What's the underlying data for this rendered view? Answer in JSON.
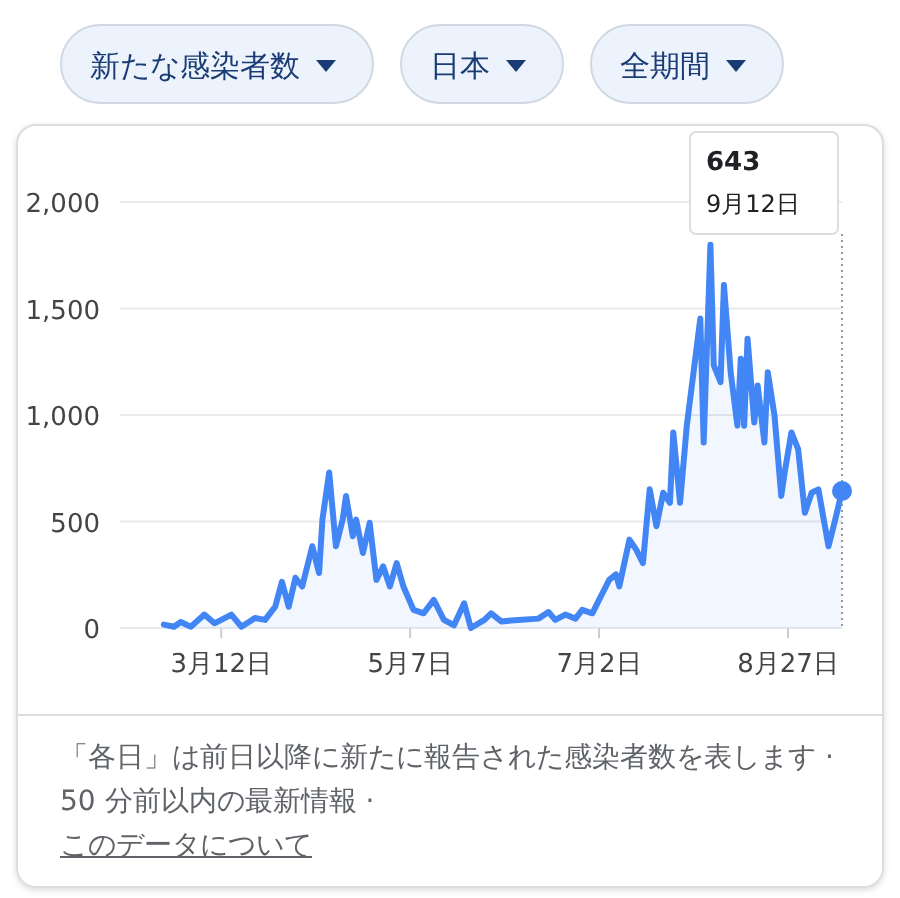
{
  "chart_data": {
    "type": "area",
    "color": "#4285f4",
    "marker": "none",
    "grid": "y",
    "x": [
      "--02-24",
      "--02-27",
      "--02-29",
      "--03-03",
      "--03-07",
      "--03-10",
      "--03-15",
      "--03-18",
      "--03-22",
      "--03-25",
      "--03-28",
      "--03-30",
      "--04-01",
      "--04-03",
      "--04-05",
      "--04-07",
      "--04-08",
      "--04-10",
      "--04-11",
      "--04-13",
      "--04-15",
      "--04-17",
      "--04-18",
      "--04-20",
      "--04-21",
      "--04-23",
      "--04-25",
      "--04-27",
      "--04-29",
      "--05-01",
      "--05-03",
      "--05-05",
      "--05-08",
      "--05-11",
      "--05-14",
      "--05-17",
      "--05-20",
      "--05-23",
      "--05-25",
      "--05-29",
      "--05-31",
      "--06-03",
      "--06-08",
      "--06-14",
      "--06-17",
      "--06-19",
      "--06-22",
      "--06-25",
      "--06-27",
      "--06-30",
      "--07-02",
      "--07-05",
      "--07-07",
      "--07-08",
      "--07-11",
      "--07-13",
      "--07-15",
      "--07-17",
      "--07-19",
      "--07-21",
      "--07-23",
      "--07-24",
      "--07-26",
      "--07-28",
      "--07-30",
      "--08-01",
      "--08-02",
      "--08-04",
      "--08-05",
      "--08-07",
      "--08-08",
      "--08-10",
      "--08-12",
      "--08-13",
      "--08-14",
      "--08-15",
      "--08-17",
      "--08-18",
      "--08-20",
      "--08-21",
      "--08-23",
      "--08-25",
      "--08-26",
      "--08-28",
      "--08-30",
      "--09-01",
      "--09-03",
      "--09-05",
      "--09-08",
      "--09-10",
      "--09-12"
    ],
    "values": [
      16,
      6,
      28,
      6,
      63,
      22,
      63,
      6,
      47,
      38,
      100,
      217,
      100,
      236,
      195,
      321,
      384,
      258,
      509,
      730,
      384,
      509,
      620,
      431,
      509,
      352,
      494,
      226,
      289,
      195,
      305,
      195,
      85,
      69,
      132,
      38,
      13,
      116,
      0,
      38,
      69,
      31,
      38,
      44,
      75,
      38,
      63,
      44,
      85,
      69,
      132,
      226,
      252,
      195,
      415,
      368,
      305,
      651,
      478,
      635,
      588,
      918,
      588,
      950,
      1201,
      1453,
      871,
      1799,
      1233,
      1154,
      1610,
      1201,
      950,
      1264,
      950,
      1358,
      965,
      1138,
      871,
      1201,
      997,
      620,
      730,
      918,
      840,
      541,
      635,
      651,
      384,
      509,
      643
    ],
    "xlim": [
      "--02-11",
      "--09-12"
    ],
    "xticks": [
      {
        "value": "--03-12",
        "label": "3月12日"
      },
      {
        "value": "--05-07",
        "label": "5月7日"
      },
      {
        "value": "--07-02",
        "label": "7月2日"
      },
      {
        "value": "--08-27",
        "label": "8月27日"
      }
    ],
    "ylim": [
      0,
      2000
    ],
    "yticks": [
      0,
      500,
      {
        "value": 1000,
        "label": "1,000"
      },
      {
        "value": 1500,
        "label": "1,500"
      },
      {
        "value": 2000,
        "label": "2,000"
      }
    ],
    "annotations": [
      "新たな感染者数",
      "日本",
      "全期間",
      "「各日」は前日以降に新たに報告された感染者数を表します · 50 分前以内の最新情報 ·",
      "このデータについて",
      "643",
      "9月12日"
    ]
  }
}
